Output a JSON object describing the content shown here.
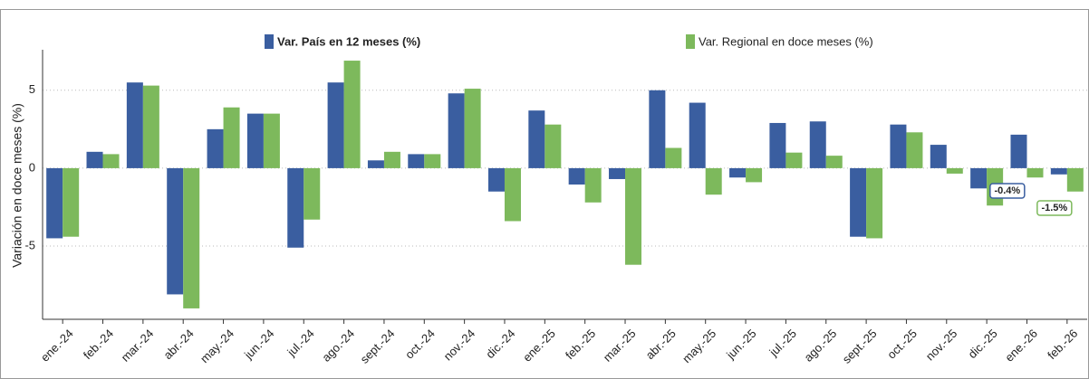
{
  "chart_data": {
    "type": "bar",
    "y_label": "Variación en doce meses (%)",
    "categories": [
      "ene.-24",
      "feb.-24",
      "mar.-24",
      "abr.-24",
      "may.-24",
      "jun.-24",
      "jul.-24",
      "ago.-24",
      "sept.-24",
      "oct.-24",
      "nov.-24",
      "dic.-24",
      "ene.-25",
      "feb.-25",
      "mar.-25",
      "abr.-25",
      "may.-25",
      "jun.-25",
      "jul.-25",
      "ago.-25",
      "sept.-25",
      "oct.-25",
      "nov.-25",
      "dic.-25",
      "ene.-26",
      "feb.-26"
    ],
    "series": [
      {
        "name": "Var. País en 12 meses (%)",
        "color": "#3a5ea0",
        "values": [
          -4.5,
          1.05,
          5.5,
          -8.1,
          2.5,
          3.5,
          -5.1,
          5.5,
          0.5,
          0.9,
          4.8,
          -1.5,
          3.7,
          -1.05,
          -0.7,
          5.0,
          4.2,
          -0.6,
          2.9,
          3.0,
          -4.4,
          2.8,
          1.5,
          -1.3,
          2.15,
          -0.4
        ],
        "value_labels": [
          null,
          null,
          null,
          null,
          null,
          null,
          null,
          null,
          null,
          null,
          null,
          null,
          null,
          null,
          null,
          null,
          null,
          null,
          null,
          null,
          null,
          null,
          null,
          null,
          null,
          "-0.4%"
        ]
      },
      {
        "name": "Var. Regional en doce meses (%)",
        "color": "#7db95c",
        "values": [
          -4.4,
          0.9,
          5.3,
          -9.0,
          3.9,
          3.5,
          -3.3,
          6.9,
          1.05,
          0.9,
          5.1,
          -3.4,
          2.8,
          -2.2,
          -6.2,
          1.3,
          -1.7,
          -0.9,
          1.0,
          0.8,
          -4.5,
          2.3,
          -0.35,
          -2.4,
          -0.6,
          -1.5
        ],
        "value_labels": [
          null,
          null,
          null,
          null,
          null,
          null,
          null,
          null,
          null,
          null,
          null,
          null,
          null,
          null,
          null,
          null,
          null,
          null,
          null,
          null,
          null,
          null,
          null,
          null,
          null,
          "-1.5%"
        ]
      }
    ],
    "ylim": [
      -9.7,
      7.6
    ],
    "yticks": [
      -5,
      0,
      5
    ],
    "grid": true
  }
}
